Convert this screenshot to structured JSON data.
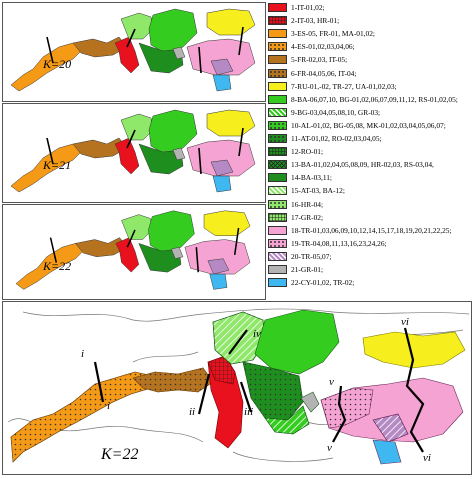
{
  "panels": [
    {
      "k_label": "K=20"
    },
    {
      "k_label": "K=21"
    },
    {
      "k_label": "K=22"
    }
  ],
  "big_map": {
    "k_label": "K=22"
  },
  "barrier_labels": [
    "i",
    "i",
    "ii",
    "iii",
    "iv",
    "v",
    "v",
    "vi",
    "vi"
  ],
  "legend": [
    {
      "label": "1-IT-01,02;",
      "color": "#e8111d",
      "pattern": "solid"
    },
    {
      "label": "2-IT-03, HR-01;",
      "color": "#e8111d",
      "pattern": "grid"
    },
    {
      "label": "3-ES-05, FR-01, MA-01,02;",
      "color": "#f59a16",
      "pattern": "solid"
    },
    {
      "label": "4-ES-01,02,03,04,06;",
      "color": "#f59a16",
      "pattern": "dots"
    },
    {
      "label": "5-FR-02,03, IT-05;",
      "color": "#b5731f",
      "pattern": "solid"
    },
    {
      "label": "6-FR-04,05,06, IT-04;",
      "color": "#b5731f",
      "pattern": "dots"
    },
    {
      "label": "7-RU-01,-02, TR-27, UA-01,02,03;",
      "color": "#f7ee1d",
      "pattern": "solid"
    },
    {
      "label": "8-BA-06,07,10, BG-01,02,06,07,09,11,12, RS-01,02,05;",
      "color": "#33cc1f",
      "pattern": "solid"
    },
    {
      "label": "9-BG-03,04,05,08,10, GR-03;",
      "color": "#33cc1f",
      "pattern": "hatch"
    },
    {
      "label": "10-AL-01,02, BG-05,08, MK-01,02,03,04,05,06,07;",
      "color": "#33cc1f",
      "pattern": "dots"
    },
    {
      "label": "11-AT-01,02, RO-02,03,04,05;",
      "color": "#1e8f1e",
      "pattern": "dots"
    },
    {
      "label": "12-RO-01;",
      "color": "#1e8f1e",
      "pattern": "grid"
    },
    {
      "label": "13-BA-01,02,04,05,08,09, HR-02,03, RS-03,04,",
      "color": "#1e8f1e",
      "pattern": "cross"
    },
    {
      "label": "14-BA-03,11;",
      "color": "#1e8f1e",
      "pattern": "solid"
    },
    {
      "label": "15-AT-03, BA-12;",
      "color": "#8fe86a",
      "pattern": "hatch"
    },
    {
      "label": "16-HR-04;",
      "color": "#8fe86a",
      "pattern": "dots"
    },
    {
      "label": "17-GR-02;",
      "color": "#8fe86a",
      "pattern": "grid"
    },
    {
      "label": "18-TR-01,03,06,09,10,12,14,15,17,18,19,20,21,22,25;",
      "color": "#f5a3d2",
      "pattern": "solid"
    },
    {
      "label": "19-TR-04,08,11,13,16,23,24,26;",
      "color": "#f5a3d2",
      "pattern": "dots"
    },
    {
      "label": "20-TR-05,07;",
      "color": "#b58ac4",
      "pattern": "hatch"
    },
    {
      "label": "21-GR-01;",
      "color": "#b3b3b3",
      "pattern": "solid"
    },
    {
      "label": "22-CY-01,02, TR-02;",
      "color": "#3fb8f2",
      "pattern": "solid"
    }
  ]
}
